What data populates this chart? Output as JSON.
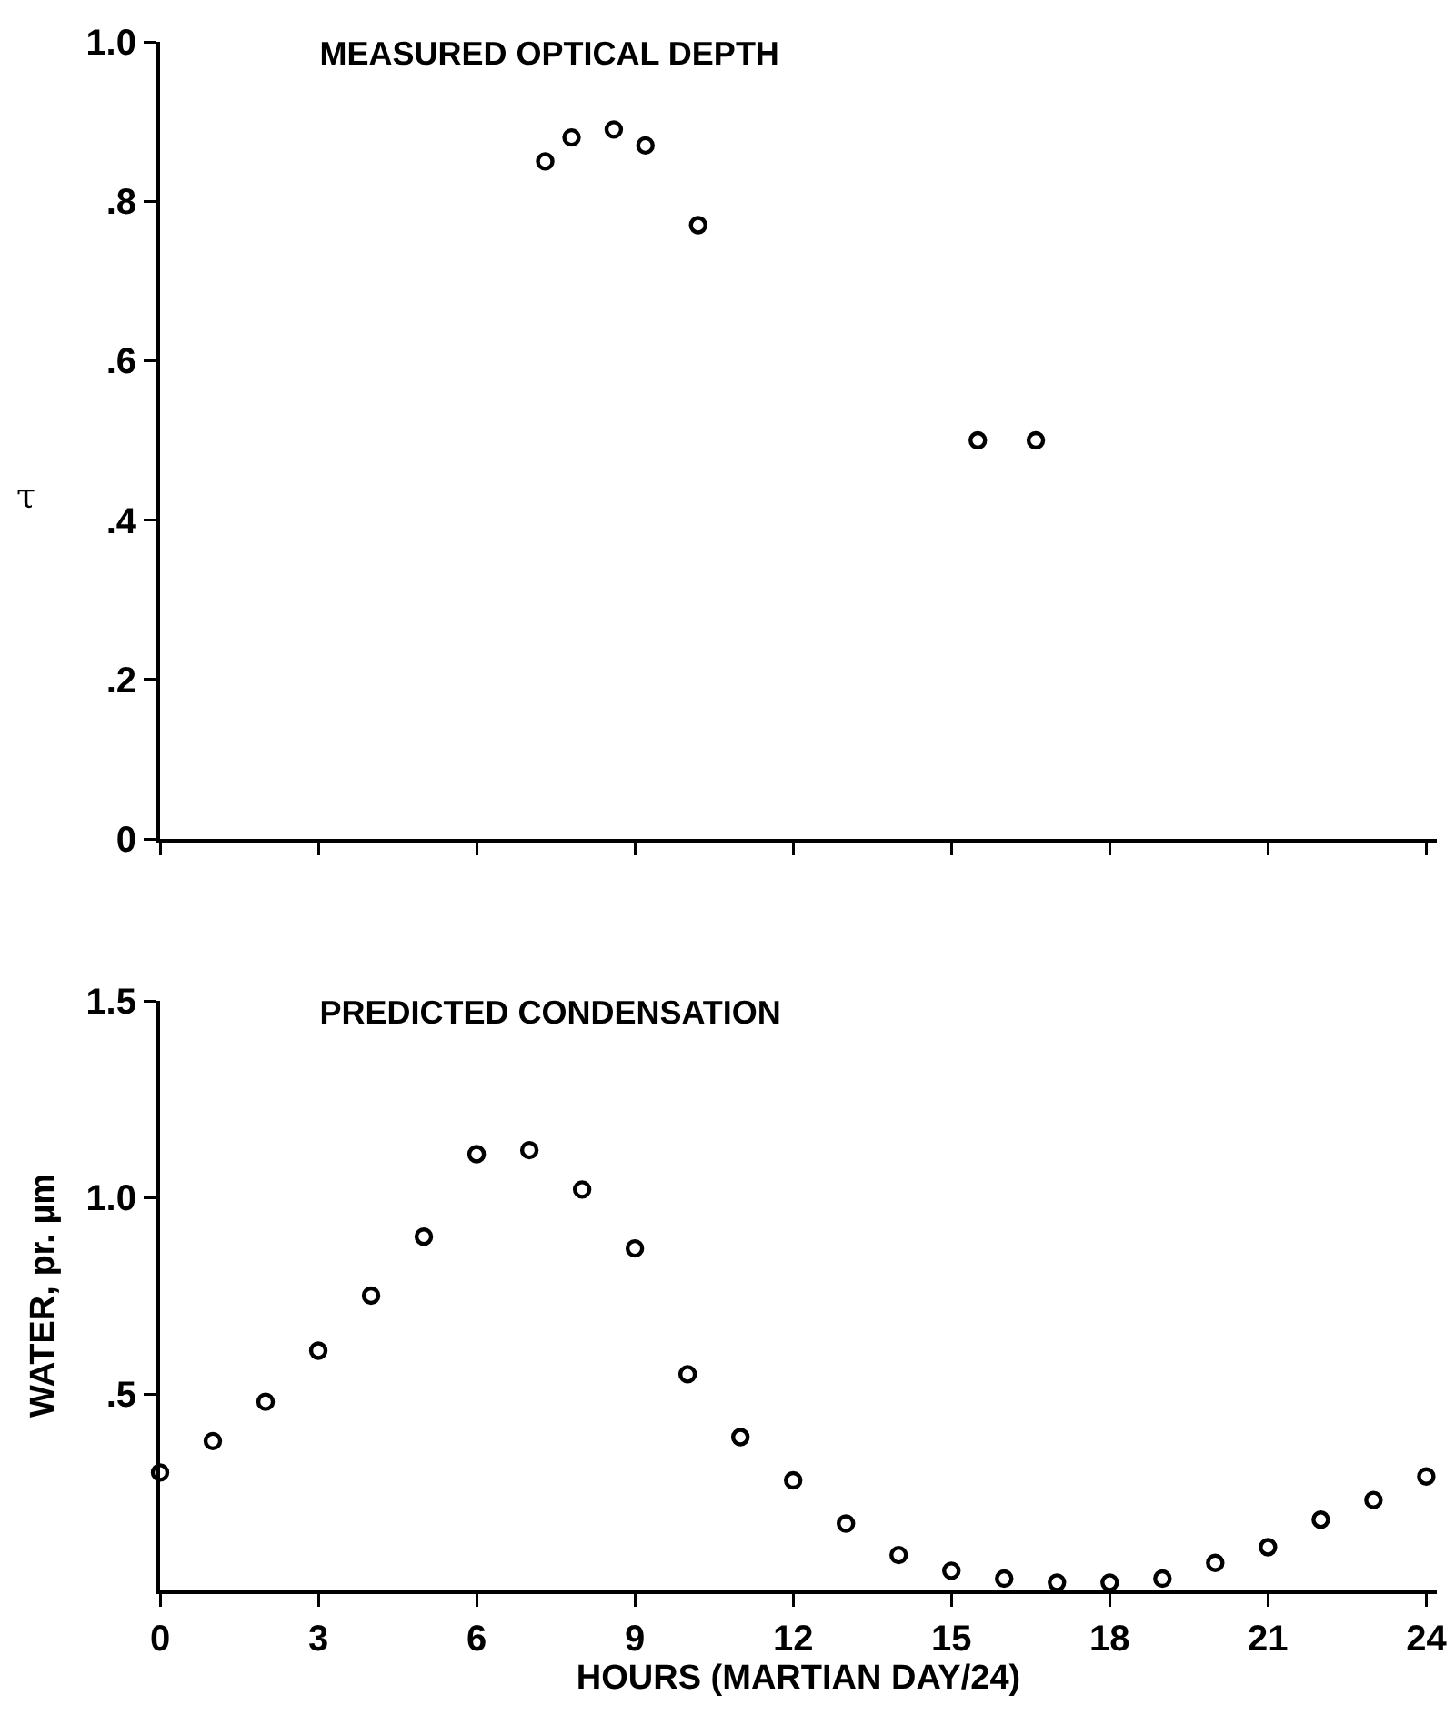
{
  "chart_data": [
    {
      "type": "scatter",
      "title": "MEASURED OPTICAL DEPTH",
      "ylabel": "τ",
      "marker": "circle",
      "tick_labels": "y",
      "xlim": [
        0,
        24.2
      ],
      "xticks": [
        {
          "value": 0,
          "label": null
        },
        {
          "value": 3,
          "label": null
        },
        {
          "value": 6,
          "label": null
        },
        {
          "value": 9,
          "label": null
        },
        {
          "value": 12,
          "label": null
        },
        {
          "value": 15,
          "label": null
        },
        {
          "value": 18,
          "label": null
        },
        {
          "value": 21,
          "label": null
        },
        {
          "value": 24,
          "label": null
        }
      ],
      "ylim": [
        0,
        1.0
      ],
      "yticks": [
        0,
        {
          "value": 0.2,
          "label": ".2"
        },
        {
          "value": 0.4,
          "label": ".4"
        },
        {
          "value": 0.6,
          "label": ".6"
        },
        {
          "value": 0.8,
          "label": ".8"
        },
        {
          "value": 1.0,
          "label": "1.0"
        }
      ],
      "series": [
        {
          "color": "#000000",
          "x": [
            7.3,
            7.8,
            8.6,
            9.2,
            10.2,
            15.5,
            16.6
          ],
          "values": [
            0.85,
            0.88,
            0.89,
            0.87,
            0.77,
            0.5,
            0.5
          ]
        }
      ]
    },
    {
      "type": "scatter",
      "title": "PREDICTED CONDENSATION",
      "xlabel": "HOURS (MARTIAN DAY/24)",
      "ylabel": "WATER, pr. µm",
      "marker": "circle",
      "xlim": [
        0,
        24.2
      ],
      "xticks": [
        0,
        3,
        6,
        9,
        12,
        15,
        18,
        21,
        24
      ],
      "ylim": [
        0,
        1.5
      ],
      "yticks": [
        {
          "value": 0.5,
          "label": ".5"
        },
        {
          "value": 1.0,
          "label": "1.0"
        },
        {
          "value": 1.5,
          "label": "1.5"
        }
      ],
      "series": [
        {
          "color": "#000000",
          "x": [
            0,
            1,
            2,
            3,
            4,
            5,
            6,
            7,
            8,
            9,
            10,
            11,
            12,
            13,
            14,
            15,
            16,
            17,
            18,
            19,
            20,
            21,
            22,
            23,
            24
          ],
          "values": [
            0.3,
            0.38,
            0.48,
            0.61,
            0.75,
            0.9,
            1.11,
            1.12,
            1.02,
            0.87,
            0.55,
            0.39,
            0.28,
            0.17,
            0.09,
            0.05,
            0.03,
            0.02,
            0.02,
            0.03,
            0.07,
            0.11,
            0.18,
            0.23,
            0.29
          ]
        }
      ]
    }
  ]
}
